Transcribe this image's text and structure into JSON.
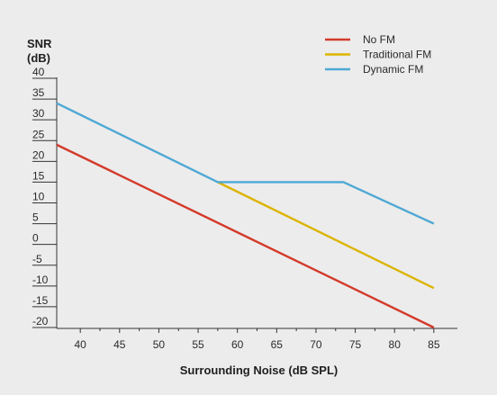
{
  "chart_data": {
    "type": "line",
    "ylabel_line1": "SNR",
    "ylabel_line2": "(dB)",
    "xlabel": "Surrounding Noise (dB SPL)",
    "xlim": [
      37,
      88
    ],
    "ylim": [
      -20,
      40
    ],
    "x_ticks": [
      "40",
      "45",
      "50",
      "55",
      "60",
      "65",
      "70",
      "75",
      "80",
      "85"
    ],
    "y_ticks": [
      "40",
      "35",
      "30",
      "25",
      "20",
      "15",
      "10",
      "5",
      "0",
      "-5",
      "-10",
      "-15",
      "-20"
    ],
    "legend_position": "top-right",
    "series": [
      {
        "name": "No FM",
        "color": "#d43a2a",
        "x": [
          37,
          85
        ],
        "y": [
          24,
          -20
        ]
      },
      {
        "name": "Traditional FM",
        "color": "#dcb400",
        "x": [
          57.5,
          85
        ],
        "y": [
          15,
          -10.5
        ]
      },
      {
        "name": "Dynamic FM",
        "color": "#4ea8d4",
        "x": [
          37,
          57.5,
          73.5,
          85
        ],
        "y": [
          34,
          15,
          15,
          5
        ]
      }
    ]
  }
}
